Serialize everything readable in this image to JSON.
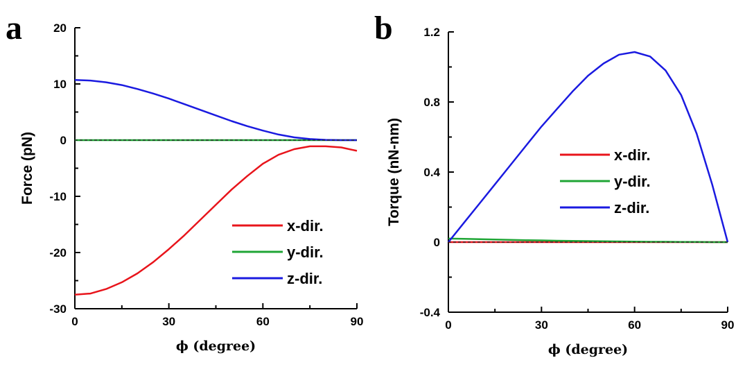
{
  "chart_data": [
    {
      "panel": "a",
      "type": "line",
      "xlabel": "ϕ (degree)",
      "ylabel": "Force (pN)",
      "xlim": [
        0,
        90
      ],
      "ylim": [
        -30,
        20
      ],
      "xticks": [
        0,
        30,
        60,
        90
      ],
      "yticks": [
        -30,
        -20,
        -10,
        0,
        10,
        20
      ],
      "x": [
        0,
        5,
        10,
        15,
        20,
        25,
        30,
        35,
        40,
        45,
        50,
        55,
        60,
        65,
        70,
        75,
        80,
        85,
        90
      ],
      "series": [
        {
          "name": "x-dir.",
          "color": "#e8141b",
          "values": [
            -27.5,
            -27.3,
            -26.5,
            -25.3,
            -23.7,
            -21.7,
            -19.4,
            -16.9,
            -14.2,
            -11.5,
            -8.8,
            -6.4,
            -4.2,
            -2.6,
            -1.6,
            -1.1,
            -1.1,
            -1.3,
            -1.9
          ]
        },
        {
          "name": "y-dir.",
          "color": "#1fa535",
          "values": [
            0,
            0,
            0,
            0,
            0,
            0,
            0,
            0,
            0,
            0,
            0,
            0,
            0,
            0,
            0,
            0,
            0,
            0,
            0
          ]
        },
        {
          "name": "z-dir.",
          "color": "#1a1ae0",
          "values": [
            10.7,
            10.6,
            10.3,
            9.8,
            9.1,
            8.3,
            7.4,
            6.4,
            5.4,
            4.4,
            3.4,
            2.5,
            1.7,
            1.0,
            0.5,
            0.2,
            0.05,
            0.0,
            0.0
          ]
        }
      ],
      "legend_position": "bottom-right",
      "grid": false
    },
    {
      "panel": "b",
      "type": "line",
      "xlabel": "ϕ (degree)",
      "ylabel": "Torque (nN-nm)",
      "xlim": [
        0,
        90
      ],
      "ylim": [
        -0.4,
        1.2
      ],
      "xticks": [
        0,
        30,
        60,
        90
      ],
      "yticks": [
        -0.4,
        0,
        0.4,
        0.8,
        1.2
      ],
      "ytick_labels": [
        "-0.4",
        "0",
        "0.4",
        "0.8",
        "1.2"
      ],
      "x": [
        0,
        5,
        10,
        15,
        20,
        25,
        30,
        35,
        40,
        45,
        50,
        55,
        60,
        65,
        70,
        75,
        80,
        85,
        90
      ],
      "series": [
        {
          "name": "x-dir.",
          "color": "#e8141b",
          "values": [
            0,
            0,
            0,
            0,
            0,
            0,
            0,
            0,
            0,
            0,
            0,
            0,
            0,
            0,
            0,
            0,
            0,
            0,
            0
          ]
        },
        {
          "name": "y-dir.",
          "color": "#1fa535",
          "values": [
            0.02,
            0.019,
            0.017,
            0.015,
            0.013,
            0.011,
            0.01,
            0.008,
            0.007,
            0.006,
            0.005,
            0.004,
            0.003,
            0.002,
            0.002,
            0.001,
            0.001,
            0.0,
            0.0
          ]
        },
        {
          "name": "z-dir.",
          "color": "#1a1ae0",
          "values": [
            0,
            0.11,
            0.22,
            0.33,
            0.44,
            0.55,
            0.66,
            0.76,
            0.86,
            0.95,
            1.02,
            1.07,
            1.085,
            1.06,
            0.98,
            0.84,
            0.62,
            0.33,
            0.0
          ]
        }
      ],
      "legend_position": "center",
      "grid": false
    }
  ]
}
